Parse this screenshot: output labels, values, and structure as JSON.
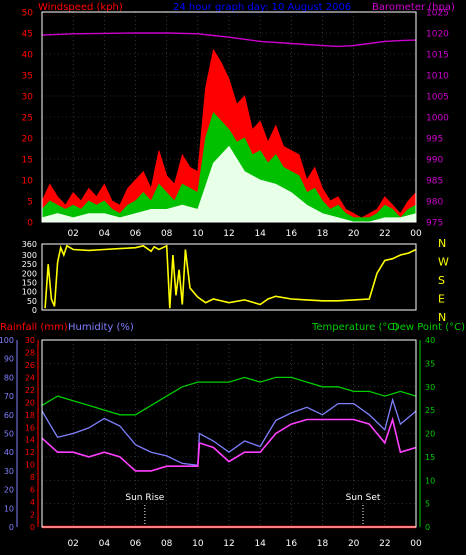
{
  "header": {
    "left_label": "Windspeed (kph)",
    "title": "24 hour graph day: 10 August 2006",
    "right_label": "Barometer (hpa)"
  },
  "colors": {
    "background": "#000000",
    "frame": "#ffffff",
    "grid": "#555555",
    "windspeed_avg": "#00c000",
    "windspeed_gust": "#ff0000",
    "windspeed_low": "#e8ffe8",
    "barometer": "#cc00cc",
    "direction": "#ffff00",
    "rainfall": "#ff0000",
    "humidity": "#8080ff",
    "temperature": "#00cc00",
    "dew_point": "#ff40ff",
    "left_axis": "#ff0000",
    "humidity_axis": "#8080ff",
    "temp_axis": "#00cc00"
  },
  "compass_labels": [
    "N",
    "W",
    "S",
    "E",
    "N"
  ],
  "markers": [
    {
      "label": "Sun Rise",
      "hour": 6.6
    },
    {
      "label": "Sun Set",
      "hour": 20.6
    }
  ],
  "bottom_header": {
    "rainfall_label": "Rainfall (mm)",
    "humidity_label": "Humidity (%)",
    "temperature_label": "Temperature (°C)",
    "dewpoint_label": "Dew Point (°C)"
  },
  "chart_data": [
    {
      "type": "line",
      "name": "wind_and_pressure",
      "xlim": [
        0,
        24
      ],
      "x_ticks": [
        "02",
        "04",
        "06",
        "08",
        "10",
        "12",
        "14",
        "16",
        "18",
        "20",
        "22",
        "00"
      ],
      "left_axis": {
        "label": "Windspeed (kph)",
        "ylim": [
          0,
          50
        ],
        "ticks": [
          0,
          5,
          10,
          15,
          20,
          25,
          30,
          35,
          40,
          45,
          50
        ]
      },
      "right_axis": {
        "label": "Barometer (hpa)",
        "ylim": [
          975,
          1025
        ],
        "ticks": [
          975,
          980,
          985,
          990,
          995,
          1000,
          1005,
          1010,
          1015,
          1020,
          1025
        ]
      },
      "series": [
        {
          "name": "Windspeed",
          "role": "gust",
          "axis": "left",
          "x": [
            0,
            0.5,
            1,
            1.5,
            2,
            2.5,
            3,
            3.5,
            4,
            4.5,
            5,
            5.5,
            6,
            6.5,
            7,
            7.5,
            8,
            8.5,
            9,
            9.5,
            10,
            10.5,
            11,
            11.5,
            12,
            12.5,
            13,
            13.5,
            14,
            14.5,
            15,
            15.5,
            16,
            16.5,
            17,
            17.5,
            18,
            18.5,
            19,
            19.5,
            20,
            20.5,
            21,
            21.5,
            22,
            22.5,
            23,
            23.5,
            24
          ],
          "y": [
            5,
            9,
            6,
            4,
            7,
            5,
            8,
            6,
            9,
            5,
            4,
            8,
            10,
            12,
            8,
            17,
            11,
            9,
            16,
            13,
            12,
            32,
            41,
            38,
            34,
            28,
            30,
            22,
            24,
            19,
            23,
            18,
            17,
            16,
            10,
            13,
            8,
            5,
            6,
            3,
            2,
            1,
            2,
            3,
            6,
            4,
            2,
            5,
            7
          ]
        },
        {
          "name": "Windspeed",
          "role": "average",
          "axis": "left",
          "x": [
            0,
            0.5,
            1,
            1.5,
            2,
            2.5,
            3,
            3.5,
            4,
            4.5,
            5,
            5.5,
            6,
            6.5,
            7,
            7.5,
            8,
            8.5,
            9,
            9.5,
            10,
            10.5,
            11,
            11.5,
            12,
            12.5,
            13,
            13.5,
            14,
            14.5,
            15,
            15.5,
            16,
            16.5,
            17,
            17.5,
            18,
            18.5,
            19,
            19.5,
            20,
            20.5,
            21,
            21.5,
            22,
            22.5,
            23,
            23.5,
            24
          ],
          "y": [
            3,
            5,
            4,
            3,
            4,
            3,
            5,
            4,
            5,
            3,
            2,
            4,
            5,
            7,
            5,
            9,
            7,
            5,
            9,
            8,
            7,
            20,
            26,
            24,
            22,
            19,
            20,
            16,
            17,
            14,
            16,
            13,
            12,
            11,
            7,
            8,
            5,
            3,
            4,
            2,
            1,
            1,
            1,
            2,
            4,
            3,
            1,
            3,
            4
          ]
        },
        {
          "name": "Windspeed",
          "role": "low",
          "axis": "left",
          "x": [
            0,
            1,
            2,
            3,
            4,
            5,
            6,
            7,
            8,
            9,
            10,
            11,
            12,
            13,
            14,
            15,
            16,
            17,
            18,
            19,
            20,
            21,
            22,
            23,
            24
          ],
          "y": [
            1,
            2,
            1,
            2,
            2,
            1,
            2,
            3,
            3,
            4,
            3,
            14,
            18,
            12,
            10,
            9,
            7,
            4,
            2,
            1,
            0,
            0,
            1,
            1,
            2
          ]
        },
        {
          "name": "Barometer",
          "axis": "right",
          "x": [
            0,
            2,
            4,
            6,
            8,
            10,
            11,
            12,
            13,
            14,
            16,
            18,
            19,
            20,
            21,
            22,
            23,
            24
          ],
          "y": [
            1019.5,
            1019.8,
            1019.9,
            1020.0,
            1020.0,
            1019.8,
            1019.4,
            1019.0,
            1018.5,
            1018.0,
            1017.5,
            1017.0,
            1016.8,
            1017.0,
            1017.5,
            1018.0,
            1018.2,
            1018.3
          ]
        }
      ]
    },
    {
      "type": "scatter",
      "name": "wind_direction",
      "xlim": [
        0,
        24
      ],
      "ylim": [
        0,
        360
      ],
      "y_ticks": [
        0,
        50,
        100,
        150,
        200,
        250,
        300,
        360
      ],
      "series": [
        {
          "name": "Wind direction",
          "x": [
            0.2,
            0.4,
            0.6,
            0.8,
            1.0,
            1.2,
            1.4,
            1.6,
            2,
            3,
            4,
            5,
            6,
            6.5,
            7,
            7.2,
            7.5,
            8,
            8.2,
            8.4,
            8.6,
            8.8,
            9,
            9.2,
            9.5,
            10,
            10.5,
            11,
            12,
            13,
            14,
            14.5,
            15,
            16,
            17,
            18,
            19,
            20,
            21,
            21.5,
            22,
            22.5,
            23,
            23.5,
            24
          ],
          "y": [
            10,
            250,
            60,
            20,
            260,
            340,
            300,
            350,
            330,
            325,
            330,
            335,
            340,
            350,
            320,
            345,
            330,
            350,
            10,
            300,
            80,
            220,
            30,
            330,
            120,
            70,
            40,
            60,
            40,
            55,
            30,
            60,
            75,
            60,
            55,
            50,
            50,
            55,
            60,
            200,
            270,
            280,
            300,
            310,
            330
          ]
        }
      ]
    },
    {
      "type": "line",
      "name": "rain_humidity_temperature",
      "xlim": [
        0,
        24
      ],
      "x_ticks": [
        "02",
        "04",
        "06",
        "08",
        "10",
        "12",
        "14",
        "16",
        "18",
        "20",
        "22",
        "00"
      ],
      "axes": [
        {
          "label": "Humidity (%)",
          "ylim": [
            0,
            100
          ],
          "ticks": [
            0,
            10,
            20,
            30,
            40,
            50,
            60,
            70,
            80,
            90,
            100
          ]
        },
        {
          "label": "Rainfall (mm)",
          "ylim": [
            0,
            30
          ],
          "ticks": [
            0,
            2,
            4,
            6,
            8,
            10,
            12,
            14,
            16,
            18,
            20,
            22,
            24,
            26,
            28,
            30
          ]
        },
        {
          "label": "Temperature (°C)",
          "ylim": [
            0,
            40
          ],
          "ticks": [
            0,
            5,
            10,
            15,
            20,
            25,
            30,
            35,
            40
          ]
        }
      ],
      "series": [
        {
          "name": "Rainfall (mm)",
          "axis": "rainfall",
          "x": [
            0,
            24
          ],
          "y": [
            0,
            0
          ]
        },
        {
          "name": "Humidity (%)",
          "axis": "humidity",
          "x": [
            0,
            1,
            2,
            3,
            4,
            5,
            6,
            7,
            8,
            9,
            10,
            10.1,
            11,
            12,
            13,
            14,
            15,
            16,
            17,
            18,
            19,
            20,
            21,
            22,
            22.5,
            23,
            24
          ],
          "y": [
            62,
            48,
            50,
            53,
            58,
            54,
            44,
            40,
            38,
            34,
            33,
            50,
            46,
            40,
            46,
            43,
            57,
            61,
            64,
            60,
            66,
            66,
            60,
            52,
            68,
            55,
            62
          ]
        },
        {
          "name": "Temperature (°C)",
          "axis": "temperature",
          "x": [
            0,
            1,
            2,
            3,
            4,
            5,
            6,
            7,
            8,
            9,
            10,
            11,
            12,
            13,
            14,
            15,
            16,
            17,
            18,
            19,
            20,
            21,
            22,
            23,
            24
          ],
          "y": [
            26,
            28,
            27,
            26,
            25,
            24,
            24,
            26,
            28,
            30,
            31,
            31,
            31,
            32,
            31,
            32,
            32,
            31,
            30,
            30,
            29,
            29,
            28,
            29,
            28
          ]
        },
        {
          "name": "Dew Point (°C)",
          "axis": "temperature",
          "x": [
            0,
            1,
            2,
            3,
            4,
            5,
            6,
            7,
            8,
            9,
            10,
            10.1,
            11,
            12,
            13,
            14,
            15,
            16,
            17,
            18,
            19,
            20,
            21,
            22,
            22.5,
            23,
            24
          ],
          "y": [
            19,
            16,
            16,
            15,
            16,
            15,
            12,
            12,
            13,
            13,
            13,
            18,
            17,
            14,
            16,
            16,
            20,
            22,
            23,
            23,
            23,
            23,
            22,
            18,
            23,
            16,
            17
          ]
        }
      ]
    }
  ]
}
